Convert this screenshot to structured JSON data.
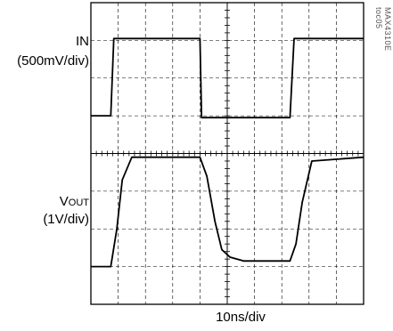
{
  "chart_data": {
    "type": "line",
    "title": "",
    "xlabel": "10ns/div",
    "x_divisions": 10,
    "y_divisions": 8,
    "grid": true,
    "series": [
      {
        "name": "IN",
        "scale_label": "(500mV/div)",
        "unit_per_div": "500mV",
        "x_div": [
          0,
          0.73,
          0.84,
          4.0,
          4.06,
          7.3,
          7.45,
          10
        ],
        "y_div": [
          1.0,
          1.0,
          3.05,
          3.05,
          0.95,
          0.95,
          3.05,
          3.05
        ]
      },
      {
        "name": "VOUT",
        "name_main": "V",
        "name_sub": "OUT",
        "scale_label": "(1V/div)",
        "unit_per_div": "1V",
        "x_div": [
          0,
          0.73,
          0.95,
          1.15,
          1.5,
          4.0,
          4.25,
          4.55,
          4.8,
          5.1,
          5.6,
          7.3,
          7.52,
          7.75,
          8.1,
          10
        ],
        "y_div": [
          -3.0,
          -3.0,
          -2.0,
          -0.7,
          -0.1,
          -0.1,
          -0.6,
          -1.8,
          -2.55,
          -2.75,
          -2.85,
          -2.85,
          -2.4,
          -1.3,
          -0.2,
          -0.1
        ]
      }
    ]
  },
  "code": "MAX4310E toc05"
}
